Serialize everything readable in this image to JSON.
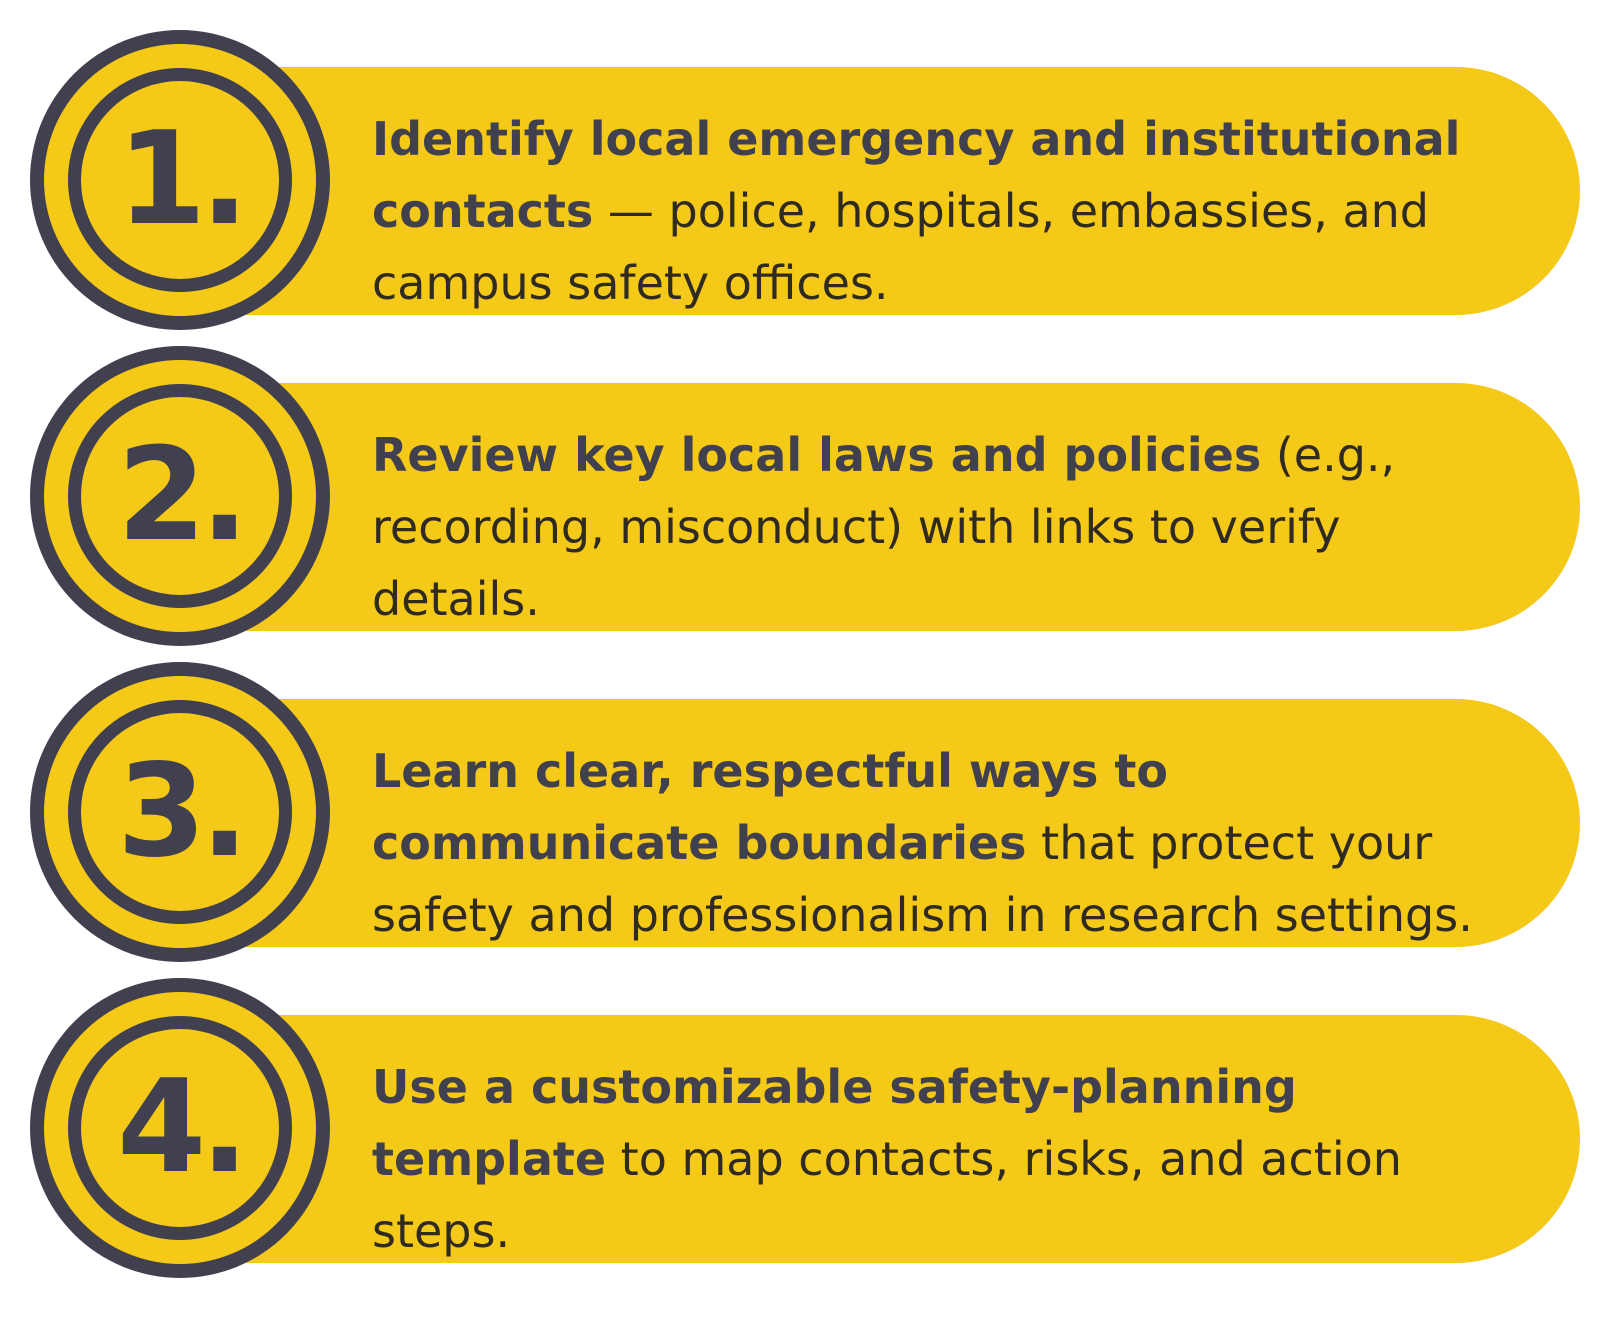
{
  "steps": [
    {
      "number": "1.",
      "bold": "Identify local emergency and institutional contacts",
      "rest": " — police, hospitals, embassies, and campus safety offices."
    },
    {
      "number": "2.",
      "bold": "Review key local laws and policies",
      "rest": " (e.g., recording, misconduct) with links to verify details."
    },
    {
      "number": "3.",
      "bold": "Learn clear, respectful ways to communicate boundaries",
      "rest": " that protect your safety and professionalism in research settings."
    },
    {
      "number": "4.",
      "bold": "Use a customizable safety-planning template",
      "rest": " to map contacts, risks, and action steps."
    }
  ],
  "colors": {
    "accent": "#f5c918",
    "dark": "#41404f",
    "text": "#2f2a22"
  }
}
